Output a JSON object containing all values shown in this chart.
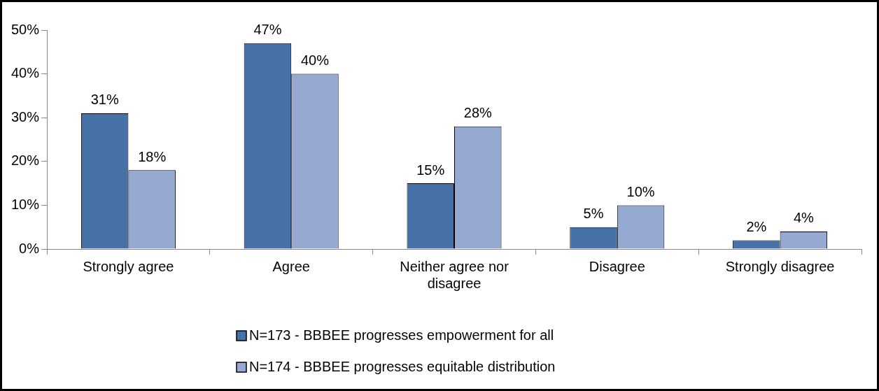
{
  "chart_data": {
    "type": "bar",
    "categories": [
      "Strongly agree",
      "Agree",
      "Neither agree nor disagree",
      "Disagree",
      "Strongly disagree"
    ],
    "series": [
      {
        "name": "N=173 - BBBEE progresses empowerment for all",
        "color": "#4672a8",
        "values": [
          31,
          47,
          15,
          5,
          2
        ]
      },
      {
        "name": "N=174 - BBBEE progresses equitable distribution",
        "color": "#95a9d1",
        "values": [
          18,
          40,
          28,
          10,
          4
        ]
      }
    ],
    "ylim": [
      0,
      50
    ],
    "yticks": [
      {
        "value": 0,
        "label": "0%"
      },
      {
        "value": 10,
        "label": "10%"
      },
      {
        "value": 20,
        "label": "20%"
      },
      {
        "value": 30,
        "label": "30%"
      },
      {
        "value": 40,
        "label": "40%"
      },
      {
        "value": 50,
        "label": "50%"
      }
    ],
    "value_labels": [
      [
        "31%",
        "47%",
        "15%",
        "5%",
        "2%"
      ],
      [
        "18%",
        "40%",
        "28%",
        "10%",
        "4%"
      ]
    ],
    "grid": false,
    "legend": "bottom"
  }
}
